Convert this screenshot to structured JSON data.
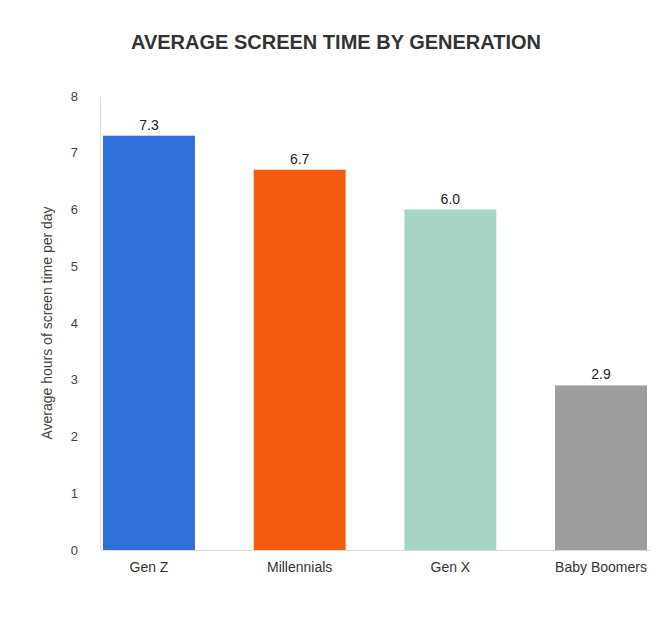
{
  "chart_data": {
    "type": "bar",
    "title": "AVERAGE SCREEN TIME BY GENERATION",
    "y_label": "Average hours of screen time per day",
    "categories": [
      "Gen Z",
      "Millennials",
      "Gen X",
      "Baby Boomers"
    ],
    "values": [
      7.3,
      6.7,
      6.0,
      2.9
    ],
    "value_labels": [
      "7.3",
      "6.7",
      "6.0",
      "2.9"
    ],
    "colors": [
      "#2e6fd9",
      "#f55b0d",
      "#a5d5c6",
      "#9d9d9d"
    ],
    "ylim": [
      0,
      8
    ],
    "yticks": [
      0,
      1,
      2,
      3,
      4,
      5,
      6,
      7,
      8
    ],
    "grid": false,
    "data_labels": true
  }
}
